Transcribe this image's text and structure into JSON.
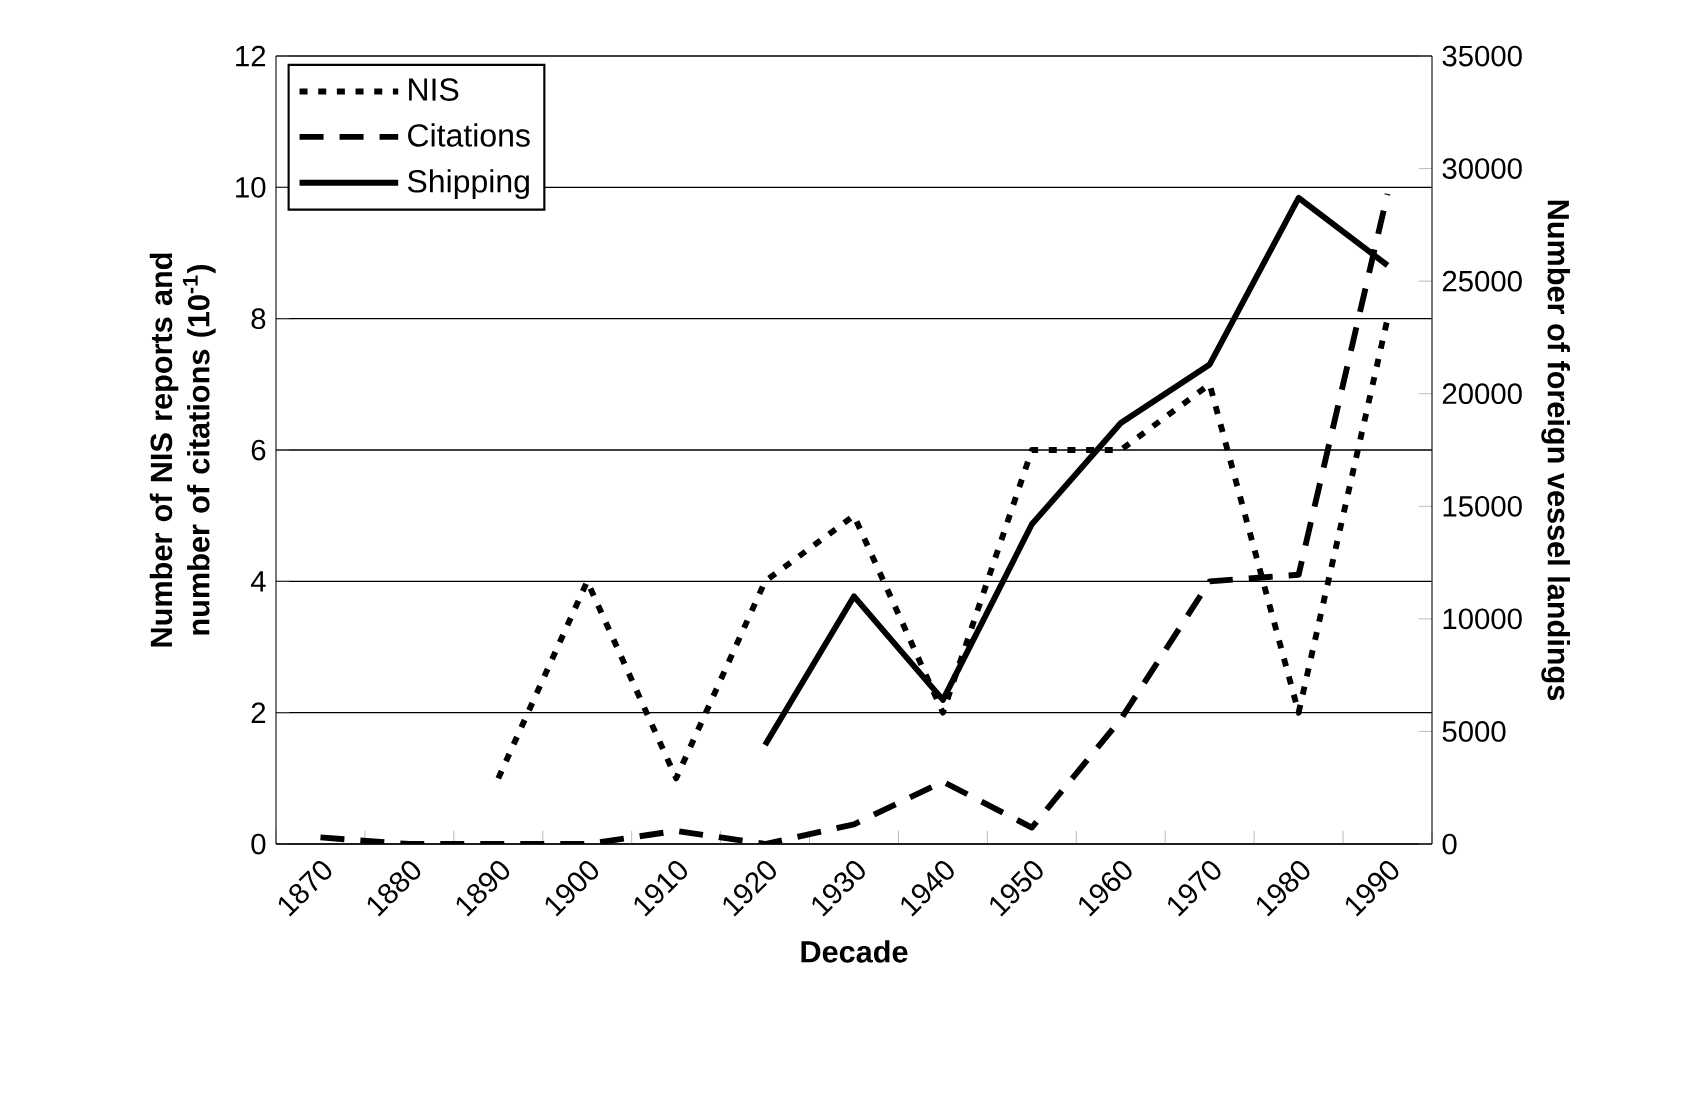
{
  "chart_data": {
    "type": "line",
    "xlabel": "Decade",
    "ylabel": "Number of NIS reports and number of citations (10$^{-1}$)",
    "y2label": "Number of foreign vessel landings",
    "categories": [
      "1870",
      "1880",
      "1890",
      "1900",
      "1910",
      "1920",
      "1930",
      "1940",
      "1950",
      "1960",
      "1970",
      "1980",
      "1990"
    ],
    "series": [
      {
        "name": "NIS",
        "color": "#000000",
        "line_style": "dotted",
        "values": [
          null,
          null,
          1,
          4,
          1,
          4,
          5,
          2,
          6,
          6,
          7,
          2,
          8
        ]
      },
      {
        "name": "Citations",
        "color": "#000000",
        "line_style": "dashed",
        "values": [
          0.1,
          0,
          0,
          0,
          0.2,
          0,
          0.3,
          0.95,
          0.25,
          1.9,
          4,
          4.1,
          9.9
        ]
      },
      {
        "name": "Shipping",
        "color": "#000000",
        "line_style": "solid",
        "axis": "y2",
        "values": [
          null,
          null,
          null,
          null,
          null,
          4400,
          11000,
          6400,
          14200,
          18700,
          21300,
          28700,
          25700
        ]
      }
    ],
    "ylim": [
      0,
      12
    ],
    "yticks": [
      0,
      2,
      4,
      6,
      8,
      10,
      12
    ],
    "y2lim": [
      0,
      35000
    ],
    "y2ticks": [
      0,
      5000,
      10000,
      15000,
      20000,
      25000,
      30000,
      35000
    ],
    "grid": "y",
    "legend": "top left",
    "marker": "none"
  }
}
